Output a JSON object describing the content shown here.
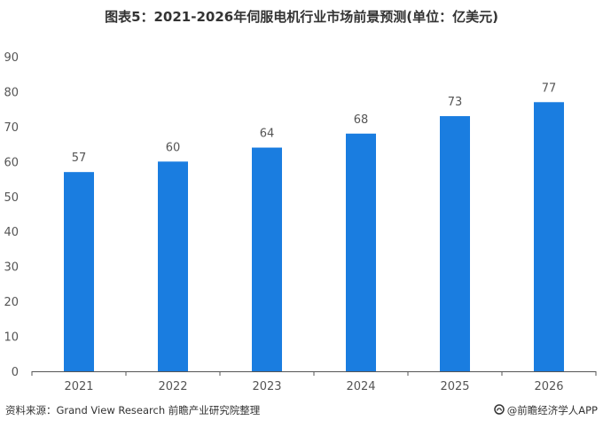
{
  "title": "图表5：2021-2026年伺服电机行业市场前景预测(单位：亿美元)",
  "source": "资料来源：Grand View Research 前瞻产业研究院整理",
  "brand": "@前瞻经济学人APP",
  "colors": {
    "bar": "#1a7de0",
    "axis": "#555555",
    "grid": "#e6e6e6",
    "text": "#555555"
  },
  "chart_data": {
    "type": "bar",
    "categories": [
      "2021",
      "2022",
      "2023",
      "2024",
      "2025",
      "2026"
    ],
    "values": [
      57,
      60,
      64,
      68,
      73,
      77
    ],
    "ylim": [
      0,
      90
    ],
    "yticks": [
      "0",
      "10",
      "20",
      "30",
      "40",
      "50",
      "60",
      "70",
      "80",
      "90"
    ],
    "grid": false,
    "legend": "none"
  }
}
